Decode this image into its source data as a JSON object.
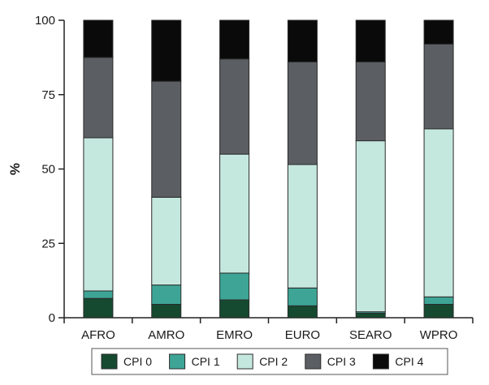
{
  "chart_data": {
    "type": "bar",
    "stacked": true,
    "categories": [
      "AFRO",
      "AMRO",
      "EMRO",
      "EURO",
      "SEARO",
      "WPRO"
    ],
    "series": [
      {
        "name": "CPI 0",
        "color": "#154a30",
        "values": [
          6.5,
          4.5,
          6,
          4,
          1.5,
          4.5
        ]
      },
      {
        "name": "CPI 1",
        "color": "#3ea596",
        "values": [
          2.5,
          6.5,
          9,
          6,
          0.5,
          2.5
        ]
      },
      {
        "name": "CPI 2",
        "color": "#c5e8de",
        "values": [
          51.5,
          29.5,
          40,
          41.5,
          57.5,
          56.5
        ]
      },
      {
        "name": "CPI 3",
        "color": "#5b5e62",
        "values": [
          27,
          39,
          32,
          34.5,
          26.5,
          28.5
        ]
      },
      {
        "name": "CPI 4",
        "color": "#0a0a0a",
        "values": [
          12.5,
          20.5,
          13,
          14,
          14,
          8
        ]
      }
    ],
    "ylabel": "%",
    "xlabel": "",
    "ylim": [
      0,
      100
    ],
    "yticks": [
      0,
      25,
      50,
      75,
      100
    ],
    "grid": false,
    "legend_position": "bottom"
  }
}
